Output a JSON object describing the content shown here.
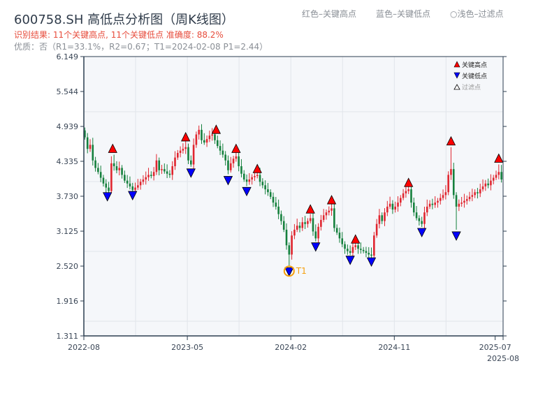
{
  "header": {
    "title": "600758.SH 高低点分析图（周K线图）",
    "result": "识别结果: 11个关键高点, 11个关键低点  准确度: 88.2%",
    "quality": "优质：否（R1=33.1%，R2=0.67；T1=2024-02-08 P1=2.44）",
    "legend_text_high": "红色–关键高点",
    "legend_text_low": "蓝色–关键低点",
    "legend_text_filtered": "○浅色–过滤点"
  },
  "colors": {
    "up": "#e0262f",
    "down": "#15803d",
    "high": "#ff0000",
    "low": "#0000ff",
    "t1": "#f59e0b",
    "red_text": "#e74c3c"
  },
  "chart_data": {
    "type": "candlestick",
    "title": "600758.SH 高低点分析图（周K线图）",
    "x_unit": "week index from 2022-08",
    "xlim": [
      0,
      158
    ],
    "ylim": [
      1.311,
      6.149
    ],
    "yticks": [
      "6.149",
      "5.544",
      "4.939",
      "4.335",
      "3.730",
      "3.125",
      "2.520",
      "1.916",
      "1.311"
    ],
    "xticks": [
      {
        "label": "2022-08",
        "i": 0
      },
      {
        "label": "2023-05",
        "i": 39
      },
      {
        "label": "2024-02",
        "i": 78
      },
      {
        "label": "2024-11",
        "i": 117
      },
      {
        "label": "2025-07",
        "i": 155
      },
      {
        "label": "2025-08",
        "i": 158
      }
    ],
    "closes": [
      4.75,
      4.55,
      4.62,
      4.35,
      4.22,
      4.15,
      4.05,
      3.95,
      3.88,
      3.82,
      4.3,
      4.25,
      4.18,
      4.22,
      4.1,
      4.0,
      3.95,
      3.9,
      3.84,
      3.88,
      3.92,
      3.98,
      4.02,
      4.06,
      4.1,
      4.08,
      4.15,
      4.35,
      4.18,
      4.2,
      4.16,
      4.12,
      4.1,
      4.25,
      4.4,
      4.48,
      4.52,
      4.55,
      4.58,
      4.35,
      4.28,
      4.62,
      4.8,
      4.88,
      4.7,
      4.66,
      4.72,
      4.78,
      4.8,
      4.7,
      4.6,
      4.52,
      4.45,
      4.35,
      4.18,
      4.3,
      4.38,
      4.42,
      4.25,
      4.12,
      4.02,
      3.98,
      4.02,
      4.06,
      4.08,
      4.1,
      3.98,
      3.92,
      3.85,
      3.8,
      3.72,
      3.62,
      3.55,
      3.42,
      3.3,
      3.15,
      2.88,
      2.72,
      3.05,
      3.15,
      3.22,
      3.18,
      3.28,
      3.25,
      3.3,
      3.35,
      3.12,
      3.0,
      3.2,
      3.32,
      3.4,
      3.45,
      3.48,
      3.52,
      3.18,
      3.1,
      3.0,
      2.9,
      2.82,
      2.78,
      2.75,
      2.85,
      2.88,
      2.82,
      2.8,
      2.78,
      2.75,
      2.72,
      2.7,
      3.05,
      3.25,
      3.4,
      3.3,
      3.45,
      3.55,
      3.6,
      3.5,
      3.55,
      3.62,
      3.7,
      3.78,
      3.82,
      3.85,
      3.62,
      3.45,
      3.35,
      3.3,
      3.25,
      3.45,
      3.55,
      3.6,
      3.58,
      3.62,
      3.65,
      3.7,
      3.75,
      3.8,
      4.1,
      4.2,
      3.75,
      3.55,
      3.6,
      3.62,
      3.65,
      3.68,
      3.72,
      3.75,
      3.8,
      3.78,
      3.85,
      3.9,
      3.95,
      3.92,
      4.0,
      4.05,
      4.1,
      4.15,
      4.02
    ],
    "key_highs": [
      {
        "i": 10.5,
        "p": 4.45
      },
      {
        "i": 38,
        "p": 4.65
      },
      {
        "i": 49.5,
        "p": 4.78
      },
      {
        "i": 57,
        "p": 4.45
      },
      {
        "i": 65,
        "p": 4.1
      },
      {
        "i": 85,
        "p": 3.4
      },
      {
        "i": 93,
        "p": 3.56
      },
      {
        "i": 102,
        "p": 2.88
      },
      {
        "i": 122,
        "p": 3.86
      },
      {
        "i": 138,
        "p": 4.58
      },
      {
        "i": 156,
        "p": 4.28
      }
    ],
    "key_lows": [
      {
        "i": 8.5,
        "p": 3.83
      },
      {
        "i": 18,
        "p": 3.85
      },
      {
        "i": 40,
        "p": 4.24
      },
      {
        "i": 54,
        "p": 4.11
      },
      {
        "i": 61,
        "p": 3.92
      },
      {
        "i": 77,
        "p": 2.53
      },
      {
        "i": 87,
        "p": 2.96
      },
      {
        "i": 100,
        "p": 2.73
      },
      {
        "i": 108,
        "p": 2.7
      },
      {
        "i": 127,
        "p": 3.21
      },
      {
        "i": 140,
        "p": 3.15
      }
    ],
    "t1": {
      "label": "T1",
      "date": "2024-02-08",
      "price": 2.44
    },
    "legend": {
      "position": "top-right",
      "entries": [
        "关键高点",
        "关键低点",
        "过滤点"
      ]
    }
  }
}
